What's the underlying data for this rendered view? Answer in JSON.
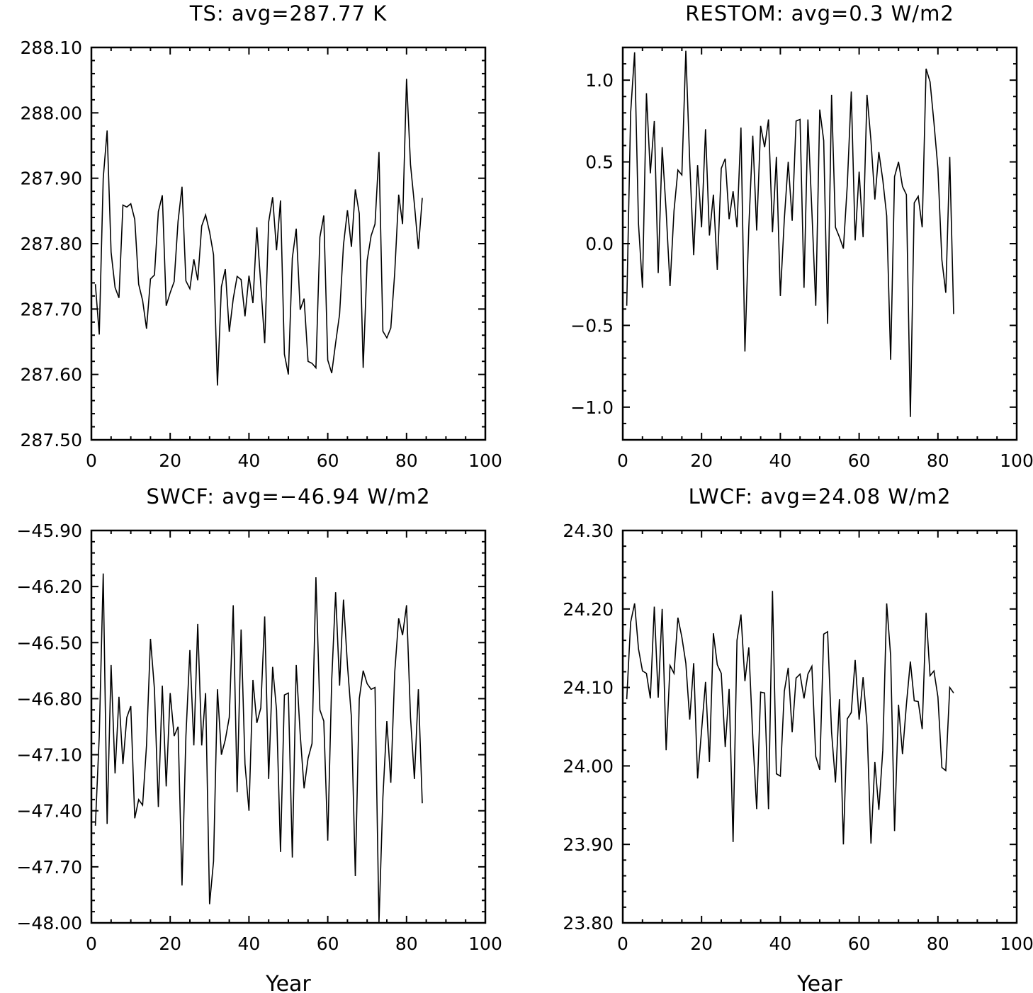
{
  "chart_data": [
    {
      "type": "line",
      "title": "TS: avg=287.77 K",
      "xlabel": "",
      "ylabel": "",
      "xlim": [
        0,
        100
      ],
      "ylim": [
        287.5,
        288.1
      ],
      "x_ticks": [
        "0",
        "20",
        "40",
        "60",
        "80",
        "100"
      ],
      "y_ticks": [
        "287.50",
        "287.60",
        "287.70",
        "287.80",
        "287.90",
        "288.00",
        "288.10"
      ],
      "series": [
        {
          "name": "TS",
          "x": [
            1,
            2,
            3,
            4,
            5,
            6,
            7,
            8,
            9,
            10,
            11,
            12,
            13,
            14,
            15,
            16,
            17,
            18,
            19,
            20,
            21,
            22,
            23,
            24,
            25,
            26,
            27,
            28,
            29,
            30,
            31,
            32,
            33,
            34,
            35,
            36,
            37,
            38,
            39,
            40,
            41,
            42,
            43,
            44,
            45,
            46,
            47,
            48,
            49,
            50,
            51,
            52,
            53,
            54,
            55,
            56,
            57,
            58,
            59,
            60,
            61,
            62,
            63,
            64,
            65,
            66,
            67,
            68,
            69,
            70,
            71,
            72,
            73,
            74,
            75,
            76,
            77,
            78,
            79,
            80,
            81,
            82,
            83,
            84
          ],
          "values": [
            287.738,
            287.661,
            287.9,
            287.973,
            287.787,
            287.733,
            287.717,
            287.859,
            287.856,
            287.861,
            287.837,
            287.738,
            287.713,
            287.67,
            287.746,
            287.752,
            287.849,
            287.874,
            287.705,
            287.725,
            287.742,
            287.834,
            287.887,
            287.743,
            287.731,
            287.776,
            287.744,
            287.827,
            287.844,
            287.818,
            287.783,
            287.583,
            287.734,
            287.761,
            287.665,
            287.716,
            287.75,
            287.745,
            287.689,
            287.751,
            287.709,
            287.825,
            287.737,
            287.648,
            287.833,
            287.871,
            287.79,
            287.866,
            287.631,
            287.6,
            287.778,
            287.823,
            287.699,
            287.716,
            287.62,
            287.617,
            287.61,
            287.81,
            287.843,
            287.622,
            287.602,
            287.648,
            287.692,
            287.798,
            287.851,
            287.795,
            287.883,
            287.846,
            287.61,
            287.774,
            287.812,
            287.83,
            287.94,
            287.666,
            287.656,
            287.671,
            287.755,
            287.875,
            287.83,
            288.052,
            287.921,
            287.86,
            287.792,
            287.87
          ]
        }
      ]
    },
    {
      "type": "line",
      "title": "RESTOM: avg=0.3 W/m2",
      "xlabel": "",
      "ylabel": "",
      "xlim": [
        0,
        100
      ],
      "ylim": [
        -1.2,
        1.2
      ],
      "x_ticks": [
        "0",
        "20",
        "40",
        "60",
        "80",
        "100"
      ],
      "y_ticks": [
        "−1.0",
        "−0.5",
        "0.0",
        "0.5",
        "1.0"
      ],
      "y_tick_values": [
        -1.0,
        -0.5,
        0.0,
        0.5,
        1.0
      ],
      "series": [
        {
          "name": "RESTOM",
          "x": [
            1,
            2,
            3,
            4,
            5,
            6,
            7,
            8,
            9,
            10,
            11,
            12,
            13,
            14,
            15,
            16,
            17,
            18,
            19,
            20,
            21,
            22,
            23,
            24,
            25,
            26,
            27,
            28,
            29,
            30,
            31,
            32,
            33,
            34,
            35,
            36,
            37,
            38,
            39,
            40,
            41,
            42,
            43,
            44,
            45,
            46,
            47,
            48,
            49,
            50,
            51,
            52,
            53,
            54,
            55,
            56,
            57,
            58,
            59,
            60,
            61,
            62,
            63,
            64,
            65,
            66,
            67,
            68,
            69,
            70,
            71,
            72,
            73,
            74,
            75,
            76,
            77,
            78,
            79,
            80,
            81,
            82,
            83,
            84
          ],
          "values": [
            -0.38,
            0.8,
            1.17,
            0.12,
            -0.27,
            0.92,
            0.43,
            0.75,
            -0.18,
            0.59,
            0.2,
            -0.26,
            0.2,
            0.45,
            0.42,
            1.18,
            0.5,
            -0.07,
            0.48,
            0.1,
            0.7,
            0.05,
            0.3,
            -0.16,
            0.46,
            0.52,
            0.15,
            0.32,
            0.1,
            0.71,
            -0.66,
            0.1,
            0.66,
            0.08,
            0.72,
            0.59,
            0.76,
            0.07,
            0.53,
            -0.32,
            0.15,
            0.5,
            0.14,
            0.75,
            0.76,
            -0.27,
            0.76,
            0.2,
            -0.38,
            0.82,
            0.63,
            -0.49,
            0.91,
            0.1,
            0.04,
            -0.03,
            0.36,
            0.93,
            0.02,
            0.44,
            0.04,
            0.91,
            0.63,
            0.27,
            0.56,
            0.39,
            0.17,
            -0.71,
            0.41,
            0.5,
            0.35,
            0.3,
            -1.06,
            0.25,
            0.29,
            0.1,
            1.07,
            0.99,
            0.74,
            0.46,
            -0.1,
            -0.3,
            0.53,
            -0.43
          ]
        }
      ]
    },
    {
      "type": "line",
      "title": "SWCF: avg=−46.94 W/m2",
      "xlabel": "Year",
      "ylabel": "",
      "xlim": [
        0,
        100
      ],
      "ylim": [
        -48.0,
        -45.9
      ],
      "x_ticks": [
        "0",
        "20",
        "40",
        "60",
        "80",
        "100"
      ],
      "y_ticks": [
        "−48.00",
        "−47.70",
        "−47.40",
        "−47.10",
        "−46.80",
        "−46.50",
        "−46.20",
        "−45.90"
      ],
      "y_tick_values": [
        -48.0,
        -47.7,
        -47.4,
        -47.1,
        -46.8,
        -46.5,
        -46.2,
        -45.9
      ],
      "series": [
        {
          "name": "SWCF",
          "x": [
            1,
            2,
            3,
            4,
            5,
            6,
            7,
            8,
            9,
            10,
            11,
            12,
            13,
            14,
            15,
            16,
            17,
            18,
            19,
            20,
            21,
            22,
            23,
            24,
            25,
            26,
            27,
            28,
            29,
            30,
            31,
            32,
            33,
            34,
            35,
            36,
            37,
            38,
            39,
            40,
            41,
            42,
            43,
            44,
            45,
            46,
            47,
            48,
            49,
            50,
            51,
            52,
            53,
            54,
            55,
            56,
            57,
            58,
            59,
            60,
            61,
            62,
            63,
            64,
            65,
            66,
            67,
            68,
            69,
            70,
            71,
            72,
            73,
            74,
            75,
            76,
            77,
            78,
            79,
            80,
            81,
            82,
            83,
            84
          ],
          "values": [
            -47.48,
            -47.0,
            -46.13,
            -47.47,
            -46.62,
            -47.2,
            -46.79,
            -47.15,
            -46.9,
            -46.84,
            -47.44,
            -47.34,
            -47.37,
            -47.05,
            -46.48,
            -46.75,
            -47.38,
            -46.73,
            -47.27,
            -46.77,
            -47.0,
            -46.95,
            -47.8,
            -47.0,
            -46.54,
            -47.05,
            -46.4,
            -47.05,
            -46.77,
            -47.9,
            -47.67,
            -46.75,
            -47.1,
            -47.02,
            -46.9,
            -46.3,
            -47.3,
            -46.43,
            -47.15,
            -47.4,
            -46.7,
            -46.93,
            -46.85,
            -46.36,
            -47.23,
            -46.63,
            -46.86,
            -47.62,
            -46.78,
            -46.77,
            -47.65,
            -46.62,
            -46.99,
            -47.28,
            -47.12,
            -47.04,
            -46.15,
            -46.86,
            -46.92,
            -47.56,
            -46.7,
            -46.23,
            -46.73,
            -46.27,
            -46.62,
            -46.9,
            -47.75,
            -46.8,
            -46.65,
            -46.72,
            -46.75,
            -46.74,
            -48.0,
            -47.33,
            -46.92,
            -47.25,
            -46.66,
            -46.37,
            -46.46,
            -46.3,
            -46.9,
            -47.23,
            -46.75,
            -47.36
          ]
        }
      ]
    },
    {
      "type": "line",
      "title": "LWCF: avg=24.08 W/m2",
      "xlabel": "Year",
      "ylabel": "",
      "xlim": [
        0,
        100
      ],
      "ylim": [
        23.8,
        24.3
      ],
      "x_ticks": [
        "0",
        "20",
        "40",
        "60",
        "80",
        "100"
      ],
      "y_ticks": [
        "23.80",
        "23.90",
        "24.00",
        "24.10",
        "24.20",
        "24.30"
      ],
      "series": [
        {
          "name": "LWCF",
          "x": [
            1,
            2,
            3,
            4,
            5,
            6,
            7,
            8,
            9,
            10,
            11,
            12,
            13,
            14,
            15,
            16,
            17,
            18,
            19,
            20,
            21,
            22,
            23,
            24,
            25,
            26,
            27,
            28,
            29,
            30,
            31,
            32,
            33,
            34,
            35,
            36,
            37,
            38,
            39,
            40,
            41,
            42,
            43,
            44,
            45,
            46,
            47,
            48,
            49,
            50,
            51,
            52,
            53,
            54,
            55,
            56,
            57,
            58,
            59,
            60,
            61,
            62,
            63,
            64,
            65,
            66,
            67,
            68,
            69,
            70,
            71,
            72,
            73,
            74,
            75,
            76,
            77,
            78,
            79,
            80,
            81,
            82,
            83,
            84
          ],
          "values": [
            24.085,
            24.183,
            24.207,
            24.149,
            24.121,
            24.118,
            24.086,
            24.203,
            24.087,
            24.2,
            24.02,
            24.128,
            24.118,
            24.189,
            24.164,
            24.131,
            24.059,
            24.131,
            23.984,
            24.045,
            24.107,
            24.005,
            24.169,
            24.129,
            24.118,
            24.024,
            24.098,
            23.903,
            24.16,
            24.193,
            24.108,
            24.151,
            24.036,
            23.945,
            24.094,
            24.093,
            23.945,
            24.223,
            23.99,
            23.987,
            24.095,
            24.125,
            24.043,
            24.112,
            24.117,
            24.086,
            24.117,
            24.127,
            24.012,
            23.995,
            24.168,
            24.171,
            24.043,
            23.979,
            24.085,
            23.9,
            24.06,
            24.068,
            24.135,
            24.059,
            24.113,
            24.052,
            23.901,
            24.005,
            23.944,
            24.02,
            24.207,
            24.14,
            23.917,
            24.078,
            24.015,
            24.078,
            24.133,
            24.083,
            24.082,
            24.047,
            24.195,
            24.115,
            24.121,
            24.088,
            23.998,
            23.994,
            24.1,
            24.093
          ]
        }
      ]
    }
  ]
}
